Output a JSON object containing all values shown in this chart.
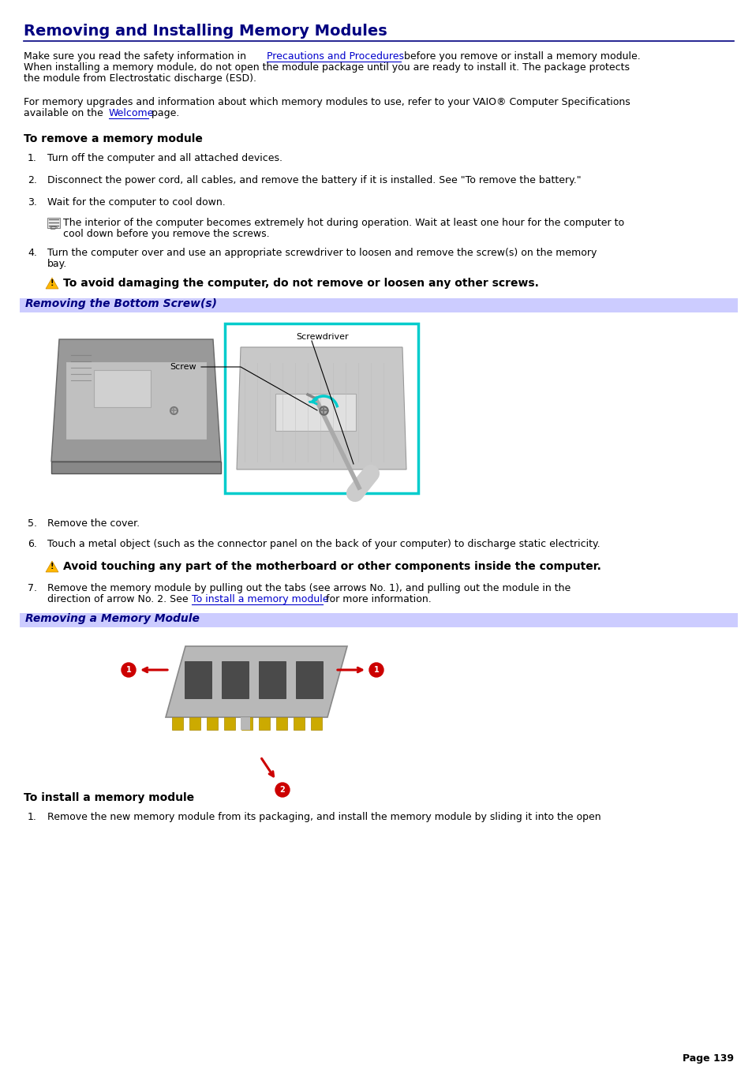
{
  "title": "Removing and Installing Memory Modules",
  "bg_color": "#ffffff",
  "title_color": "#000080",
  "title_underline_color": "#000080",
  "body_font_color": "#000000",
  "link_color": "#0000cc",
  "section_bg_color": "#ccccff",
  "section_text_color": "#000080",
  "para1_link": "Precautions and Procedures",
  "para2_link": "Welcome",
  "section1_title": "To remove a memory module",
  "steps_remove": [
    "Turn off the computer and all attached devices.",
    "Disconnect the power cord, all cables, and remove the battery if it is installed. See \"To remove the battery.\"",
    "Wait for the computer to cool down.",
    "Turn the computer over and use an appropriate screwdriver to loosen and remove the screw(s) on the memory",
    "Remove the cover.",
    "Touch a metal object (such as the connector panel on the back of your computer) to discharge static electricity.",
    "Remove the memory module by pulling out the tabs (see arrows No. 1), and pulling out the module in the"
  ],
  "note1_line1": "The interior of the computer becomes extremely hot during operation. Wait at least one hour for the computer to",
  "note1_line2": "cool down before you remove the screws.",
  "warning1": "To avoid damaging the computer, do not remove or loosen any other screws.",
  "warning2": "Avoid touching any part of the motherboard or other components inside the computer.",
  "section_label1": "Removing the Bottom Screw(s)",
  "section_label2": "Removing a Memory Module",
  "section2_title": "To install a memory module",
  "step_install1": "Remove the new memory module from its packaging, and install the memory module by sliding it into the open",
  "page_number": "Page 139"
}
